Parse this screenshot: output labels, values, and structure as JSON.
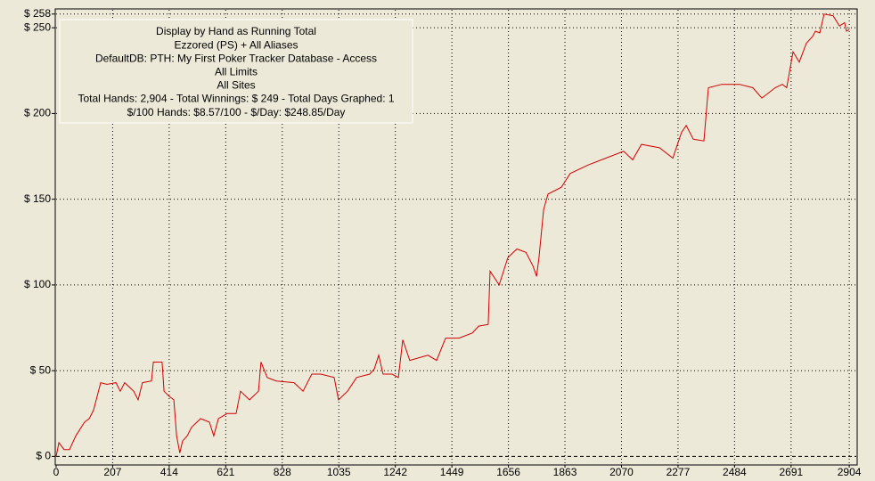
{
  "chart_data": {
    "type": "line",
    "annotations": [
      "Display by Hand as Running Total",
      "Ezzored (PS) + All Aliases",
      "DefaultDB: PTH: My First Poker Tracker Database - Access",
      "All Limits",
      "All Sites",
      "Total Hands: 2,904 - Total Winnings: $ 249 - Total Days Graphed: 1",
      "$/100 Hands: $8.57/100 - $/Day: $248.85/Day"
    ],
    "x": [
      0,
      10,
      29,
      49,
      72,
      104,
      121,
      137,
      163,
      186,
      219,
      235,
      251,
      284,
      300,
      316,
      349,
      356,
      388,
      395,
      414,
      431,
      441,
      453,
      463,
      480,
      496,
      529,
      561,
      577,
      594,
      626,
      659,
      675,
      708,
      741,
      750,
      773,
      806,
      871,
      904,
      936,
      969,
      1018,
      1034,
      1067,
      1100,
      1148,
      1165,
      1181,
      1197,
      1230,
      1253,
      1269,
      1295,
      1361,
      1393,
      1426,
      1475,
      1524,
      1547,
      1582,
      1589,
      1622,
      1654,
      1687,
      1720,
      1746,
      1759,
      1768,
      1785,
      1801,
      1850,
      1882,
      1948,
      2013,
      2078,
      2111,
      2143,
      2209,
      2258,
      2290,
      2307,
      2333,
      2372,
      2388,
      2437,
      2502,
      2551,
      2584,
      2633,
      2659,
      2675,
      2698,
      2721,
      2747,
      2770,
      2780,
      2796,
      2812,
      2845,
      2868,
      2887,
      2894,
      2904
    ],
    "values": [
      0,
      8,
      4,
      4,
      12,
      20,
      22,
      27,
      43,
      42,
      43,
      38,
      43,
      38,
      33,
      43,
      44,
      55,
      55,
      38,
      35,
      33,
      12,
      2,
      9,
      12,
      17,
      22,
      20,
      12,
      22,
      25,
      25,
      38,
      33,
      38,
      55,
      46,
      44,
      43,
      38,
      48,
      48,
      46,
      33,
      38,
      46,
      48,
      51,
      59,
      48,
      48,
      46,
      68,
      56,
      59,
      56,
      69,
      69,
      72,
      76,
      77,
      108,
      100,
      116,
      121,
      119,
      111,
      105,
      116,
      144,
      153,
      157,
      165,
      170,
      174,
      178,
      173,
      182,
      180,
      174,
      189,
      193,
      185,
      184,
      215,
      217,
      217,
      215,
      209,
      215,
      217,
      215,
      236,
      230,
      241,
      245,
      248,
      247,
      258,
      257,
      251,
      253,
      248,
      249
    ],
    "color": "#d40000",
    "xlim": [
      0,
      2933
    ],
    "xticks": [
      0,
      207,
      414,
      621,
      828,
      1035,
      1242,
      1449,
      1656,
      1863,
      2070,
      2277,
      2484,
      2691,
      2904
    ],
    "ylim": [
      -5,
      261
    ],
    "yticks": [
      {
        "value": 0,
        "label": "$ 0"
      },
      {
        "value": 50,
        "label": "$ 50"
      },
      {
        "value": 100,
        "label": "$ 100"
      },
      {
        "value": 150,
        "label": "$ 150"
      },
      {
        "value": 200,
        "label": "$ 200"
      },
      {
        "value": 250,
        "label": "$ 250"
      },
      {
        "value": 258,
        "label": "$ 258"
      }
    ],
    "grid": true
  }
}
